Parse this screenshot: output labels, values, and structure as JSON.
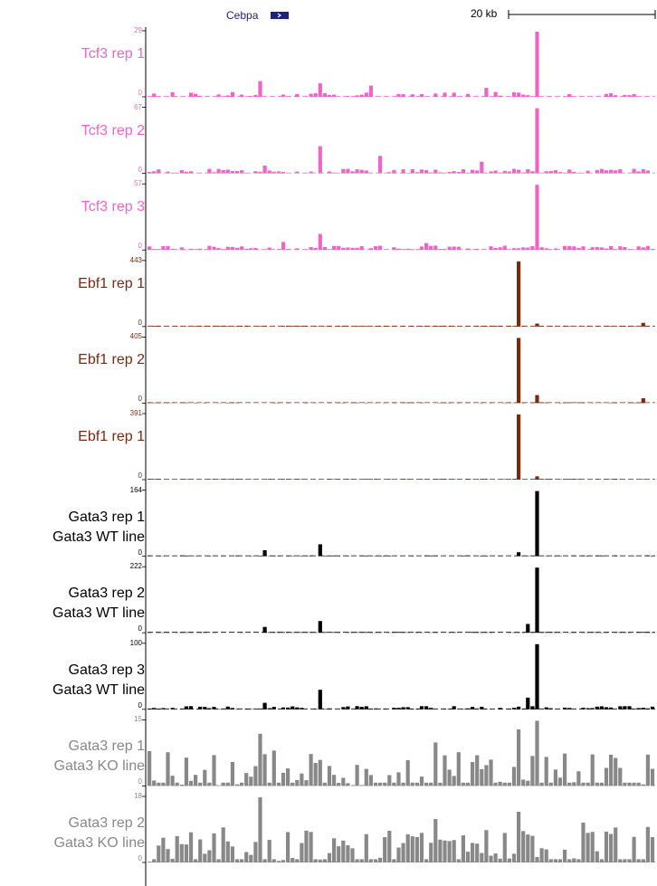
{
  "gene": {
    "name": "Cebpa",
    "color": "#1a237e"
  },
  "scale_bar": {
    "label": "20 kb"
  },
  "chart_data": {
    "type": "bar",
    "description_free": true,
    "n_bins": 110,
    "tracks": [
      {
        "label": [
          "Tcf3 rep 1"
        ],
        "color": "#f064c8",
        "ymax": 29,
        "ymin": 0,
        "style": "sparse",
        "peaks": [
          {
            "bin": 84,
            "value": 29
          },
          {
            "bin": 24,
            "value": 7
          },
          {
            "bin": 37,
            "value": 6
          },
          {
            "bin": 48,
            "value": 5
          },
          {
            "bin": 73,
            "value": 4
          }
        ]
      },
      {
        "label": [
          "Tcf3 rep 2"
        ],
        "color": "#f064c8",
        "ymax": 67,
        "ymin": 0,
        "style": "dense",
        "peaks": [
          {
            "bin": 84,
            "value": 67
          },
          {
            "bin": 37,
            "value": 28
          },
          {
            "bin": 50,
            "value": 18
          },
          {
            "bin": 72,
            "value": 12
          },
          {
            "bin": 25,
            "value": 8
          }
        ]
      },
      {
        "label": [
          "Tcf3 rep 3"
        ],
        "color": "#f064c8",
        "ymax": 57,
        "ymin": 0,
        "style": "dense",
        "peaks": [
          {
            "bin": 84,
            "value": 57
          },
          {
            "bin": 37,
            "value": 14
          },
          {
            "bin": 29,
            "value": 7
          },
          {
            "bin": 60,
            "value": 6
          }
        ]
      },
      {
        "label": [
          "Ebf1 rep 1"
        ],
        "color": "#7b2a10",
        "ymax": 443,
        "ymin": 0,
        "style": "flat",
        "peaks": [
          {
            "bin": 80,
            "value": 443
          },
          {
            "bin": 84,
            "value": 20
          },
          {
            "bin": 107,
            "value": 25
          }
        ]
      },
      {
        "label": [
          "Ebf1 rep 2"
        ],
        "color": "#7b2a10",
        "ymax": 405,
        "ymin": 0,
        "style": "flat",
        "peaks": [
          {
            "bin": 80,
            "value": 405
          },
          {
            "bin": 84,
            "value": 50
          },
          {
            "bin": 107,
            "value": 30
          }
        ]
      },
      {
        "label": [
          "Ebf1 rep 1"
        ],
        "color": "#7b2a10",
        "ymax": 391,
        "ymin": 0,
        "style": "flat",
        "peaks": [
          {
            "bin": 80,
            "value": 391
          },
          {
            "bin": 84,
            "value": 20
          }
        ]
      },
      {
        "label": [
          "Gata3 rep 1",
          "Gata3 WT line"
        ],
        "color": "#000000",
        "ymax": 164,
        "ymin": 0,
        "style": "flat",
        "peaks": [
          {
            "bin": 84,
            "value": 164
          },
          {
            "bin": 37,
            "value": 30
          },
          {
            "bin": 25,
            "value": 15
          },
          {
            "bin": 80,
            "value": 10
          }
        ]
      },
      {
        "label": [
          "Gata3 rep 2",
          "Gata3 WT line"
        ],
        "color": "#000000",
        "ymax": 222,
        "ymin": 0,
        "style": "flat",
        "peaks": [
          {
            "bin": 84,
            "value": 222
          },
          {
            "bin": 37,
            "value": 40
          },
          {
            "bin": 82,
            "value": 30
          },
          {
            "bin": 25,
            "value": 20
          }
        ]
      },
      {
        "label": [
          "Gata3 rep 3",
          "Gata3 WT line"
        ],
        "color": "#000000",
        "ymax": 100,
        "ymin": 0,
        "style": "dense-small",
        "peaks": [
          {
            "bin": 84,
            "value": 100
          },
          {
            "bin": 37,
            "value": 30
          },
          {
            "bin": 82,
            "value": 18
          },
          {
            "bin": 25,
            "value": 10
          }
        ]
      },
      {
        "label": [
          "Gata3 rep 1",
          "Gata3 KO line"
        ],
        "color": "#888888",
        "ymax": 15,
        "ymin": 0,
        "style": "noisy",
        "peaks": [
          {
            "bin": 84,
            "value": 15
          },
          {
            "bin": 24,
            "value": 12
          },
          {
            "bin": 80,
            "value": 13
          },
          {
            "bin": 62,
            "value": 10
          }
        ]
      },
      {
        "label": [
          "Gata3 rep 2",
          "Gata3 KO line"
        ],
        "color": "#888888",
        "ymax": 18,
        "ymin": 0,
        "style": "noisy",
        "peaks": [
          {
            "bin": 24,
            "value": 18
          },
          {
            "bin": 80,
            "value": 14
          },
          {
            "bin": 62,
            "value": 12
          },
          {
            "bin": 94,
            "value": 11
          }
        ]
      }
    ]
  }
}
